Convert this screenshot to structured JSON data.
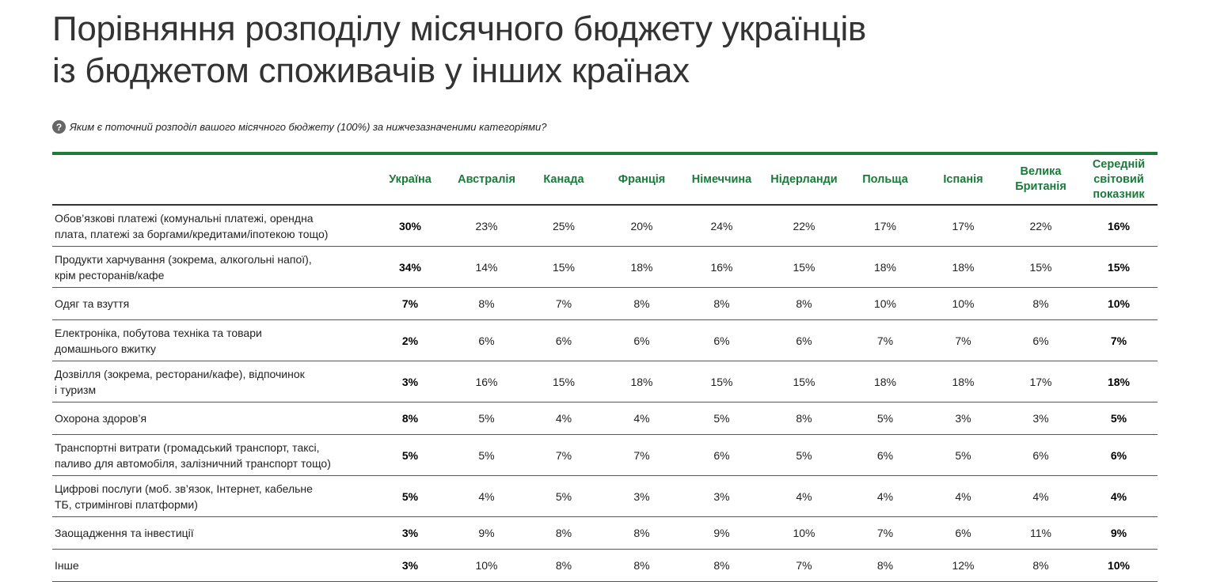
{
  "title": "Порівняння розподілу місячного бюджету українців\nіз бюджетом споживачів у інших країнах",
  "question": {
    "icon": "question-circle-icon",
    "text": "Яким є поточний розподіл вашого місячного бюджету (100%) за нижчезазначеними категоріями?"
  },
  "colors": {
    "accent": "#1e7b3b"
  },
  "table": {
    "columns": [
      "Україна",
      "Австралія",
      "Канада",
      "Франція",
      "Німеччина",
      "Нідерланди",
      "Польща",
      "Іспанія",
      "Велика\nБританія",
      "Середній\nсвітовий\nпоказник"
    ],
    "rows": [
      {
        "label": "Обов’язкові платежі (комунальні платежі, орендна\nплата, платежі за боргами/кредитами/іпотекою тощо)",
        "values": [
          "30%",
          "23%",
          "25%",
          "20%",
          "24%",
          "22%",
          "17%",
          "17%",
          "22%",
          "16%"
        ]
      },
      {
        "label": "Продукти харчування (зокрема, алкогольні напої),\nкрім ресторанів/кафе",
        "values": [
          "34%",
          "14%",
          "15%",
          "18%",
          "16%",
          "15%",
          "18%",
          "18%",
          "15%",
          "15%"
        ]
      },
      {
        "label": "Одяг та взуття",
        "values": [
          "7%",
          "8%",
          "7%",
          "8%",
          "8%",
          "8%",
          "10%",
          "10%",
          "8%",
          "10%"
        ]
      },
      {
        "label": "Електроніка, побутова техніка та товари\nдомашнього вжитку",
        "values": [
          "2%",
          "6%",
          "6%",
          "6%",
          "6%",
          "6%",
          "7%",
          "7%",
          "6%",
          "7%"
        ]
      },
      {
        "label": "Дозвілля (зокрема, ресторани/кафе), відпочинок\nі туризм",
        "values": [
          "3%",
          "16%",
          "15%",
          "18%",
          "15%",
          "15%",
          "18%",
          "18%",
          "17%",
          "18%"
        ]
      },
      {
        "label": "Охорона здоров’я",
        "values": [
          "8%",
          "5%",
          "4%",
          "4%",
          "5%",
          "8%",
          "5%",
          "3%",
          "3%",
          "5%"
        ]
      },
      {
        "label": "Транспортні витрати (громадський транспорт, таксі,\nпаливо для автомобіля, залізничний транспорт тощо)",
        "values": [
          "5%",
          "5%",
          "7%",
          "7%",
          "6%",
          "5%",
          "6%",
          "5%",
          "6%",
          "6%"
        ]
      },
      {
        "label": "Цифрові послуги (моб. зв’язок, Інтернет, кабельне\nТБ, стримінгові платформи)",
        "values": [
          "5%",
          "4%",
          "5%",
          "3%",
          "3%",
          "4%",
          "4%",
          "4%",
          "4%",
          "4%"
        ]
      },
      {
        "label": "Заощадження та інвестиції",
        "values": [
          "3%",
          "9%",
          "8%",
          "8%",
          "9%",
          "10%",
          "7%",
          "6%",
          "11%",
          "9%"
        ]
      },
      {
        "label": "Інше",
        "values": [
          "3%",
          "10%",
          "8%",
          "8%",
          "8%",
          "7%",
          "8%",
          "12%",
          "8%",
          "10%"
        ]
      }
    ]
  }
}
